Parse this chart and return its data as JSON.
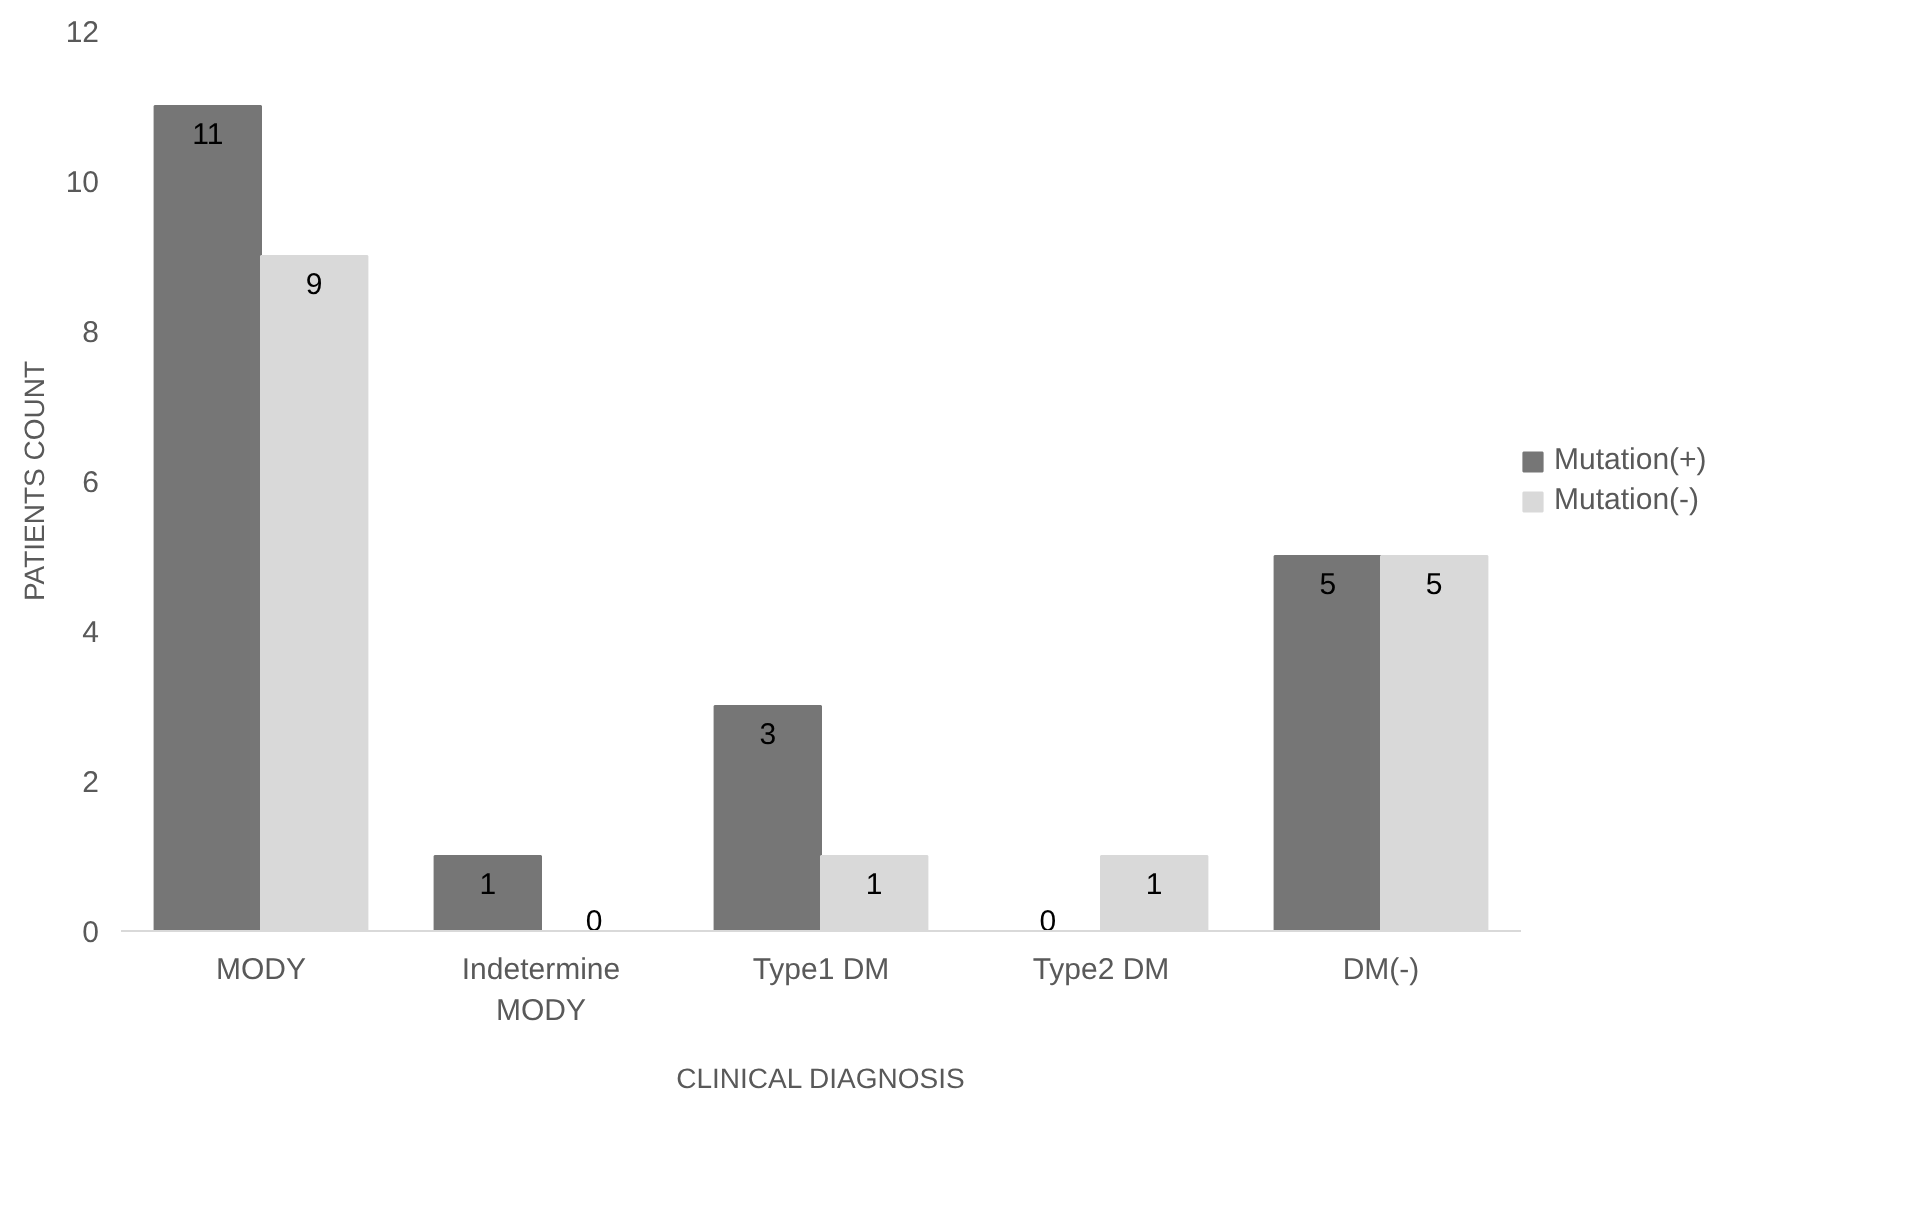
{
  "chart_data": {
    "type": "bar",
    "xlabel": "CLINICAL DIAGNOSIS",
    "ylabel": "PATIENTS COUNT",
    "categories": [
      "MODY",
      "Indetermine MODY",
      "Type1 DM",
      "Type2 DM",
      "DM(-)"
    ],
    "series": [
      {
        "name": "Mutation(+)",
        "color": "#767676",
        "values": [
          11,
          1,
          3,
          0,
          5
        ]
      },
      {
        "name": "Mutation(-)",
        "color": "#d9d9d9",
        "values": [
          9,
          0,
          1,
          1,
          5
        ]
      }
    ],
    "ylim": [
      0,
      12
    ],
    "yticks": [
      0,
      2,
      4,
      6,
      8,
      10,
      12
    ],
    "grid": false,
    "legend": "right",
    "data_labels": true
  }
}
